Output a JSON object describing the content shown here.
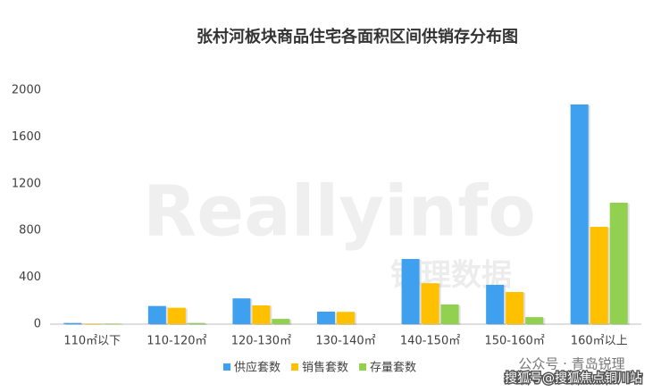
{
  "chart_data": {
    "type": "bar",
    "title": "张村河板块商品住宅各面积区间供销存分布图",
    "categories": [
      "110㎡以下",
      "110-120㎡",
      "120-130㎡",
      "130-140㎡",
      "140-150㎡",
      "150-160㎡",
      "160㎡以上"
    ],
    "series": [
      {
        "name": "供应套数",
        "color": "#3fa0f0",
        "values": [
          10,
          155,
          220,
          107,
          557,
          336,
          1878
        ]
      },
      {
        "name": "销售套数",
        "color": "#ffc000",
        "values": [
          5,
          140,
          160,
          105,
          350,
          275,
          832
        ]
      },
      {
        "name": "存量套数",
        "color": "#92d050",
        "values": [
          5,
          10,
          45,
          0,
          168,
          60,
          1038
        ]
      }
    ],
    "ylim": [
      0,
      2000
    ],
    "yticks": [
      0,
      400,
      800,
      1200,
      1600,
      2000
    ],
    "grid": false,
    "legend": "bottom",
    "watermarks": [
      "Reallyinfo",
      "锐理数据",
      "公众号 · 青岛锐理",
      "搜狐号@搜狐焦点铜川站"
    ]
  }
}
